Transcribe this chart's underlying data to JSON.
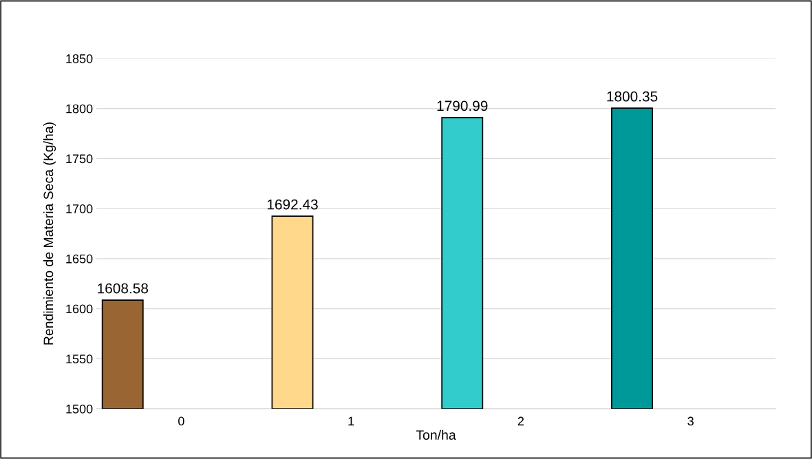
{
  "chart_data": {
    "type": "bar",
    "xlabel": "Ton/ha",
    "ylabel": "Rendimiento de Materia Seca (Kg/ha)",
    "categories": [
      "0",
      "1",
      "2",
      "3"
    ],
    "values": [
      1608.58,
      1692.43,
      1790.99,
      1800.35
    ],
    "colors": [
      "#996633",
      "#ffd88c",
      "#33cccc",
      "#009999"
    ],
    "ylim": [
      1500,
      1850
    ],
    "yticks": [
      1500,
      1550,
      1600,
      1650,
      1700,
      1750,
      1800,
      1850
    ],
    "grid": "y",
    "data_labels": true
  }
}
